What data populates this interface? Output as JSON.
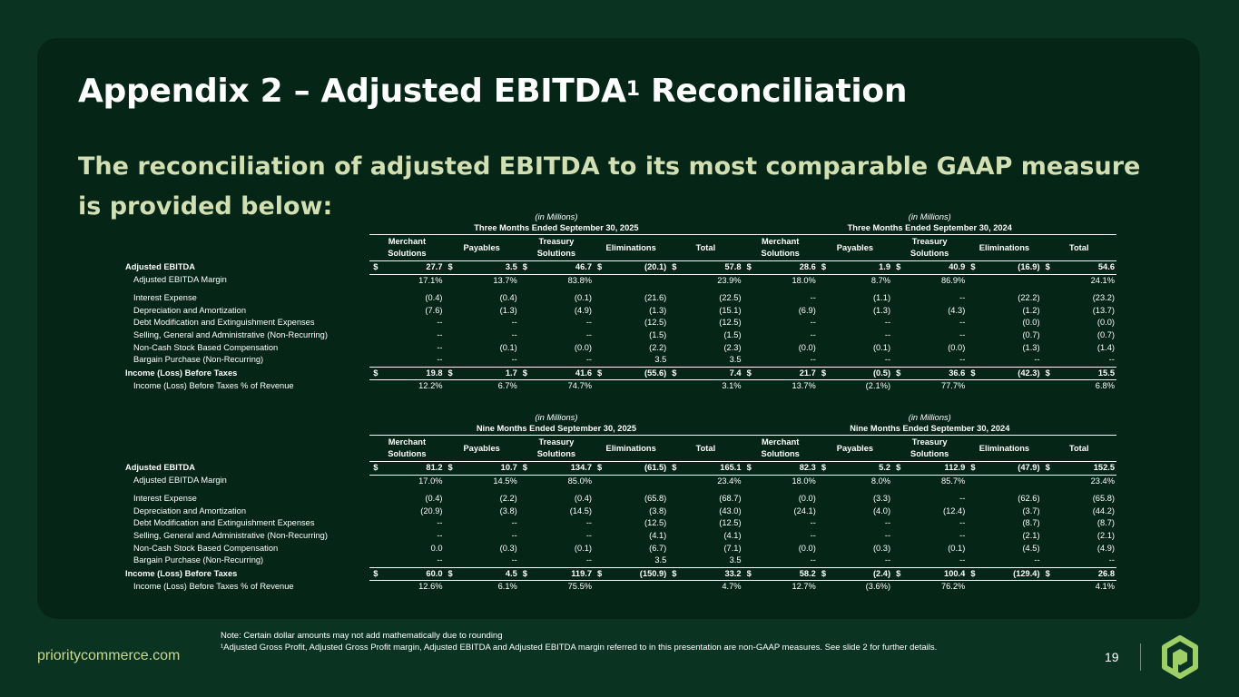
{
  "title": {
    "main": "Appendix 2 – Adjusted EBITDA",
    "sup": "1",
    "tail": " Reconciliation"
  },
  "subtitle": "The reconciliation of adjusted EBITDA to its most comparable GAAP measure is provided below:",
  "tables": [
    {
      "periods": [
        {
          "unit": "(in Millions)",
          "label": "Three Months Ended September 30, 2025"
        },
        {
          "unit": "(in Millions)",
          "label": "Three Months Ended September 30, 2024"
        }
      ],
      "columns": [
        "Merchant Solutions",
        "Payables",
        "Treasury Solutions",
        "Eliminations",
        "Total"
      ],
      "rows": [
        {
          "label": "Adjusted EBITDA",
          "style": "bold-boxed",
          "values": [
            "27.7",
            "3.5",
            "46.7",
            "(20.1)",
            "57.8",
            "28.6",
            "1.9",
            "40.9",
            "(16.9)",
            "54.6"
          ]
        },
        {
          "label": "Adjusted EBITDA Margin",
          "style": "indent",
          "values": [
            "17.1%",
            "13.7%",
            "83.8%",
            "",
            "23.9%",
            "18.0%",
            "8.7%",
            "86.9%",
            "",
            "24.1%"
          ]
        },
        {
          "label": "",
          "style": "gap",
          "values": []
        },
        {
          "label": "Interest Expense",
          "style": "indent",
          "values": [
            "(0.4)",
            "(0.4)",
            "(0.1)",
            "(21.6)",
            "(22.5)",
            "--",
            "(1.1)",
            "--",
            "(22.2)",
            "(23.2)"
          ]
        },
        {
          "label": "Depreciation and Amortization",
          "style": "indent",
          "values": [
            "(7.6)",
            "(1.3)",
            "(4.9)",
            "(1.3)",
            "(15.1)",
            "(6.9)",
            "(1.3)",
            "(4.3)",
            "(1.2)",
            "(13.7)"
          ]
        },
        {
          "label": "Debt Modification and Extinguishment Expenses",
          "style": "indent",
          "values": [
            "--",
            "--",
            "--",
            "(12.5)",
            "(12.5)",
            "--",
            "--",
            "--",
            "(0.0)",
            "(0.0)"
          ]
        },
        {
          "label": "Selling, General and Administrative (Non-Recurring)",
          "style": "indent",
          "values": [
            "--",
            "--",
            "--",
            "(1.5)",
            "(1.5)",
            "--",
            "--",
            "--",
            "(0.7)",
            "(0.7)"
          ]
        },
        {
          "label": "Non-Cash Stock Based Compensation",
          "style": "indent",
          "values": [
            "--",
            "(0.1)",
            "(0.0)",
            "(2.2)",
            "(2.3)",
            "(0.0)",
            "(0.1)",
            "(0.0)",
            "(1.3)",
            "(1.4)"
          ]
        },
        {
          "label": "Bargain Purchase (Non-Recurring)",
          "style": "indent",
          "values": [
            "--",
            "--",
            "--",
            "3.5",
            "3.5",
            "--",
            "--",
            "--",
            "--",
            "--"
          ]
        },
        {
          "label": "Income (Loss) Before Taxes",
          "style": "bold-boxed",
          "values": [
            "19.8",
            "1.7",
            "41.6",
            "(55.6)",
            "7.4",
            "21.7",
            "(0.5)",
            "36.6",
            "(42.3)",
            "15.5"
          ]
        },
        {
          "label": "Income (Loss) Before Taxes % of Revenue",
          "style": "indent",
          "values": [
            "12.2%",
            "6.7%",
            "74.7%",
            "",
            "3.1%",
            "13.7%",
            "(2.1%)",
            "77.7%",
            "",
            "6.8%"
          ]
        }
      ]
    },
    {
      "periods": [
        {
          "unit": "(in Millions)",
          "label": "Nine Months Ended September 30, 2025"
        },
        {
          "unit": "(in Millions)",
          "label": "Nine Months Ended September 30, 2024"
        }
      ],
      "columns": [
        "Merchant Solutions",
        "Payables",
        "Treasury Solutions",
        "Eliminations",
        "Total"
      ],
      "rows": [
        {
          "label": "Adjusted EBITDA",
          "style": "bold-boxed",
          "values": [
            "81.2",
            "10.7",
            "134.7",
            "(61.5)",
            "165.1",
            "82.3",
            "5.2",
            "112.9",
            "(47.9)",
            "152.5"
          ]
        },
        {
          "label": "Adjusted EBITDA Margin",
          "style": "indent",
          "values": [
            "17.0%",
            "14.5%",
            "85.0%",
            "",
            "23.4%",
            "18.0%",
            "8.0%",
            "85.7%",
            "",
            "23.4%"
          ]
        },
        {
          "label": "",
          "style": "gap",
          "values": []
        },
        {
          "label": "Interest Expense",
          "style": "indent",
          "values": [
            "(0.4)",
            "(2.2)",
            "(0.4)",
            "(65.8)",
            "(68.7)",
            "(0.0)",
            "(3.3)",
            "--",
            "(62.6)",
            "(65.8)"
          ]
        },
        {
          "label": "Depreciation and Amortization",
          "style": "indent",
          "values": [
            "(20.9)",
            "(3.8)",
            "(14.5)",
            "(3.8)",
            "(43.0)",
            "(24.1)",
            "(4.0)",
            "(12.4)",
            "(3.7)",
            "(44.2)"
          ]
        },
        {
          "label": "Debt Modification and Extinguishment Expenses",
          "style": "indent",
          "values": [
            "--",
            "--",
            "--",
            "(12.5)",
            "(12.5)",
            "--",
            "--",
            "--",
            "(8.7)",
            "(8.7)"
          ]
        },
        {
          "label": "Selling, General and Administrative (Non-Recurring)",
          "style": "indent",
          "values": [
            "--",
            "--",
            "--",
            "(4.1)",
            "(4.1)",
            "--",
            "--",
            "--",
            "(2.1)",
            "(2.1)"
          ]
        },
        {
          "label": "Non-Cash Stock Based Compensation",
          "style": "indent",
          "values": [
            "0.0",
            "(0.3)",
            "(0.1)",
            "(6.7)",
            "(7.1)",
            "(0.0)",
            "(0.3)",
            "(0.1)",
            "(4.5)",
            "(4.9)"
          ]
        },
        {
          "label": "Bargain Purchase (Non-Recurring)",
          "style": "indent",
          "values": [
            "--",
            "--",
            "--",
            "3.5",
            "3.5",
            "--",
            "--",
            "--",
            "--",
            "--"
          ]
        },
        {
          "label": "Income (Loss) Before Taxes",
          "style": "bold-boxed",
          "values": [
            "60.0",
            "4.5",
            "119.7",
            "(150.9)",
            "33.2",
            "58.2",
            "(2.4)",
            "100.4",
            "(129.4)",
            "26.8"
          ]
        },
        {
          "label": "Income (Loss) Before Taxes % of Revenue",
          "style": "indent",
          "values": [
            "12.6%",
            "6.1%",
            "75.5%",
            "",
            "4.7%",
            "12.7%",
            "(3.6%)",
            "76.2%",
            "",
            "4.1%"
          ]
        }
      ]
    }
  ],
  "currency_symbol": "$",
  "footnotes": [
    "Note: Certain dollar amounts may not add mathematically due to rounding",
    "¹Adjusted Gross Profit, Adjusted Gross Profit margin, Adjusted EBITDA and Adjusted EBITDA margin referred to in this presentation are non-GAAP measures. See slide 2 for further details."
  ],
  "footer": {
    "site": "prioritycommerce.com",
    "page": "19",
    "logo_icon": "priority-logo-icon"
  },
  "colors": {
    "background": "#0b3322",
    "panel": "#052516",
    "subtitle": "#d2dfb2",
    "site": "#cbd98f",
    "logo": "#9ecf66"
  }
}
